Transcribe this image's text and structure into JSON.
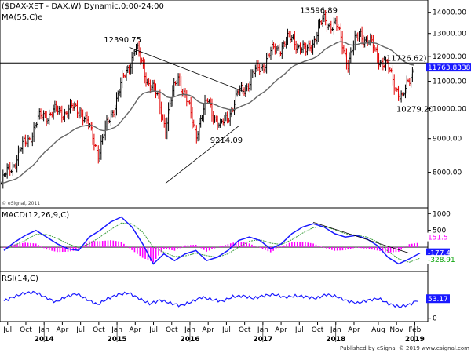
{
  "chart_data": [
    {
      "type": "ohlc",
      "title": "($DAX-XET - DAX,W) Dynamic,0:00-24:00",
      "ma_label": "MA(55,C)e",
      "watermark": "© eSignal, 2011",
      "y_ticks": [
        "14000.00",
        "13000.00",
        "12000.00",
        "11000.00",
        "10000.00",
        "9000.00",
        "8000.00"
      ],
      "y_tick_values": [
        14000,
        13000,
        12000,
        11000,
        10000,
        9000,
        8000
      ],
      "ylim": [
        7200,
        14300
      ],
      "log_scale": true,
      "x_tick_labels": [
        "Jul",
        "Oct",
        "Jan",
        "Apr",
        "Jul",
        "Oct",
        "Jan",
        "Apr",
        "Jul",
        "Oct",
        "Jan",
        "Apr",
        "Jul",
        "Oct",
        "Jan",
        "Apr",
        "Jul",
        "Oct",
        "Jan",
        "Apr",
        "Aug",
        "Nov",
        "Feb"
      ],
      "year_labels": [
        "2014",
        "2015",
        "2016",
        "2017",
        "2018",
        "2019"
      ],
      "horizontal_line": {
        "value": 11726.62,
        "label": "(11726.62)"
      },
      "last_price_label": "11763.8338",
      "annotations": [
        {
          "text": "12390.75",
          "value": 12390.75
        },
        {
          "text": "13596.89",
          "value": 13596.89
        },
        {
          "text": "9214.09",
          "value": 9214.09
        },
        {
          "text": "10279.20",
          "value": 10279.2
        }
      ],
      "key_points": [
        {
          "date": "2013-06",
          "close": 7700
        },
        {
          "date": "2013-12",
          "close": 9550
        },
        {
          "date": "2014-01",
          "close": 9800
        },
        {
          "date": "2014-07",
          "close": 10000
        },
        {
          "date": "2014-10",
          "close": 8600
        },
        {
          "date": "2014-12",
          "close": 9800
        },
        {
          "date": "2015-04",
          "close": 12390.75
        },
        {
          "date": "2015-06",
          "close": 11100
        },
        {
          "date": "2015-08",
          "close": 10200
        },
        {
          "date": "2015-09",
          "close": 9400
        },
        {
          "date": "2015-11",
          "close": 11300
        },
        {
          "date": "2016-02",
          "close": 9214.09
        },
        {
          "date": "2016-04",
          "close": 10300
        },
        {
          "date": "2016-06",
          "close": 9300
        },
        {
          "date": "2016-09",
          "close": 10500
        },
        {
          "date": "2016-12",
          "close": 11400
        },
        {
          "date": "2017-03",
          "close": 12300
        },
        {
          "date": "2017-06",
          "close": 12800
        },
        {
          "date": "2017-08",
          "close": 12100
        },
        {
          "date": "2017-11",
          "close": 13596.89
        },
        {
          "date": "2018-01",
          "close": 13400
        },
        {
          "date": "2018-03",
          "close": 11800
        },
        {
          "date": "2018-05",
          "close": 13100
        },
        {
          "date": "2018-07",
          "close": 12400
        },
        {
          "date": "2018-10",
          "close": 11300
        },
        {
          "date": "2018-12",
          "close": 10279.2
        },
        {
          "date": "2019-02",
          "close": 11763.83
        }
      ]
    },
    {
      "type": "line",
      "title": "MACD(12,26,9,C)",
      "y_ticks": [
        "1000",
        "500"
      ],
      "y_tick_values": [
        1000,
        500
      ],
      "value_labels": [
        {
          "text": "151.5",
          "value": 151.5,
          "color": "#ff00ff"
        },
        {
          "text": "-177.41",
          "value": -177.41,
          "color": "#1a1aff"
        },
        {
          "text": "-328.91",
          "value": -328.91,
          "color": "#00a000"
        }
      ],
      "series": [
        {
          "name": "MACD",
          "values": [
            -100,
            150,
            350,
            500,
            300,
            100,
            -50,
            -100,
            300,
            500,
            750,
            900,
            600,
            100,
            -500,
            -200,
            -400,
            -200,
            -100,
            -400,
            -300,
            -100,
            200,
            300,
            200,
            -50,
            100,
            400,
            600,
            700,
            600,
            400,
            300,
            350,
            250,
            50,
            -300,
            -500,
            -350,
            -177.41
          ]
        },
        {
          "name": "Signal",
          "values": [
            -80,
            60,
            200,
            380,
            380,
            260,
            100,
            -10,
            100,
            300,
            520,
            720,
            700,
            450,
            0,
            -150,
            -280,
            -260,
            -180,
            -250,
            -300,
            -200,
            0,
            180,
            220,
            120,
            80,
            220,
            420,
            580,
            620,
            520,
            400,
            360,
            300,
            160,
            -120,
            -350,
            -450,
            -328.91
          ]
        }
      ],
      "histogram_last": 151.5
    },
    {
      "type": "line",
      "title": "RSI(14,C)",
      "y_ticks": [
        "50",
        "0"
      ],
      "y_tick_values": [
        50,
        0
      ],
      "value_label": {
        "text": "53.17",
        "value": 53.17
      },
      "series": [
        {
          "name": "RSI",
          "values": [
            48,
            60,
            70,
            72,
            58,
            45,
            60,
            68,
            52,
            38,
            55,
            66,
            70,
            55,
            40,
            50,
            42,
            35,
            45,
            58,
            52,
            47,
            60,
            62,
            55,
            63,
            66,
            58,
            62,
            60,
            55,
            66,
            60,
            48,
            42,
            50,
            55,
            40,
            32,
            38,
            53.17
          ]
        }
      ]
    }
  ],
  "footer": "Published by eSignal © 2019 www.esignal.com",
  "colors": {
    "macd": "#1a1aff",
    "signal": "#3fa03f",
    "histogram": "#ff00ff",
    "price_up": "#000000",
    "price_down": "#e00000",
    "ma": "#666666",
    "label_bg": "#1a1aff"
  }
}
